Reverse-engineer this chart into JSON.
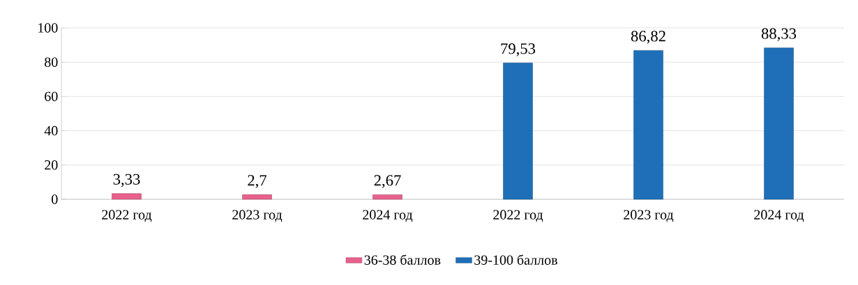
{
  "chart_data": {
    "type": "bar",
    "categories": [
      "2022 год",
      "2023 год",
      "2024 год",
      "2022 год",
      "2023 год",
      "2024 год"
    ],
    "series": [
      {
        "name": "36-38 баллов",
        "color": "#e8608c",
        "values": [
          3.33,
          2.7,
          2.67,
          null,
          null,
          null
        ],
        "value_labels": [
          "3,33",
          "2,7",
          "2,67",
          null,
          null,
          null
        ]
      },
      {
        "name": "39-100 баллов",
        "color": "#1f6fb8",
        "values": [
          null,
          null,
          null,
          79.53,
          86.82,
          88.33
        ],
        "value_labels": [
          null,
          null,
          null,
          "79,53",
          "86,82",
          "88,33"
        ]
      }
    ],
    "ylim": [
      0,
      100
    ],
    "yticks": [
      0,
      20,
      40,
      60,
      80,
      100
    ],
    "grid": "y",
    "legend": "bottom"
  }
}
